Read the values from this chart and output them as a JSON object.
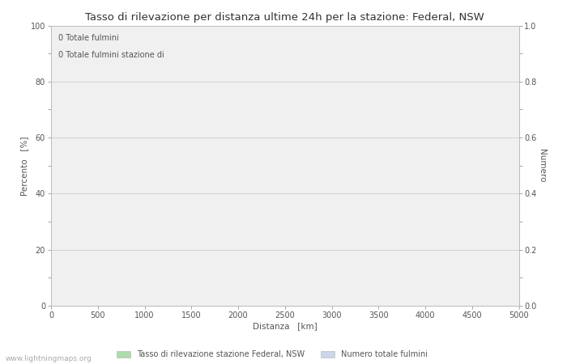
{
  "title": "Tasso di rilevazione per distanza ultime 24h per la stazione: Federal, NSW",
  "annotation_line1": "0 Totale fulmini",
  "annotation_line2": "0 Totale fulmini stazione di",
  "xlabel": "Distanza   [km]",
  "ylabel_left": "Percento   [%]",
  "ylabel_right": "Numero",
  "xlim": [
    0,
    5000
  ],
  "ylim_left": [
    0,
    100
  ],
  "ylim_right": [
    0,
    1.0
  ],
  "xticks": [
    0,
    500,
    1000,
    1500,
    2000,
    2500,
    3000,
    3500,
    4000,
    4500,
    5000
  ],
  "yticks_left": [
    0,
    10,
    20,
    30,
    40,
    50,
    60,
    70,
    80,
    90,
    100
  ],
  "yticks_right": [
    0.0,
    0.1,
    0.2,
    0.3,
    0.4,
    0.5,
    0.6,
    0.7,
    0.8,
    0.9,
    1.0
  ],
  "major_yticks_left": [
    0,
    20,
    40,
    60,
    80,
    100
  ],
  "major_yticks_right": [
    0.0,
    0.2,
    0.4,
    0.6,
    0.8,
    1.0
  ],
  "background_color": "#ffffff",
  "plot_bg_color": "#f0f0f0",
  "grid_color": "#cccccc",
  "legend_label_green": "Tasso di rilevazione stazione Federal, NSW",
  "legend_label_blue": "Numero totale fulmini",
  "legend_color_green": "#aaddaa",
  "legend_color_blue": "#c8d8e8",
  "watermark": "www.lightningmaps.org",
  "title_fontsize": 9.5,
  "axis_label_fontsize": 7.5,
  "tick_fontsize": 7,
  "annotation_fontsize": 7,
  "legend_fontsize": 7,
  "watermark_fontsize": 6.5
}
